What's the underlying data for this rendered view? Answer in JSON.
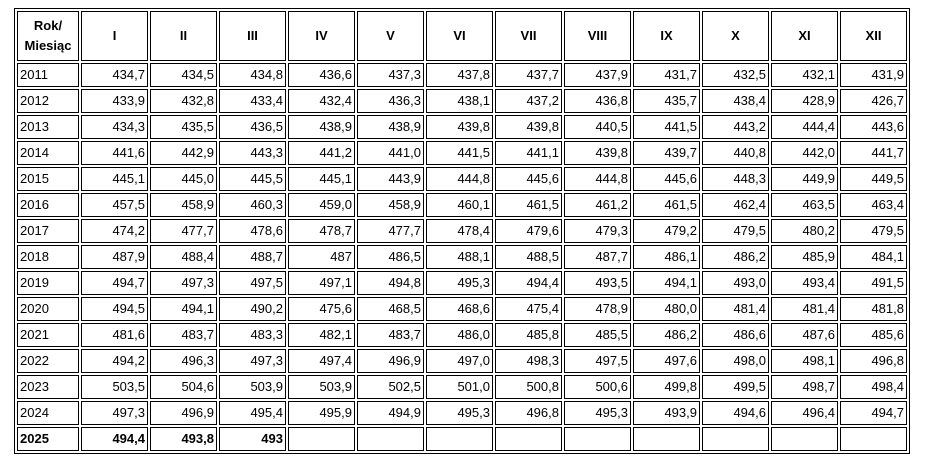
{
  "header": {
    "corner_line1": "Rok/",
    "corner_line2": "Miesiąc",
    "months": [
      "I",
      "II",
      "III",
      "IV",
      "V",
      "VI",
      "VII",
      "VIII",
      "IX",
      "X",
      "XI",
      "XII"
    ]
  },
  "rows": [
    {
      "year": "2011",
      "values": [
        "434,7",
        "434,5",
        "434,8",
        "436,6",
        "437,3",
        "437,8",
        "437,7",
        "437,9",
        "431,7",
        "432,5",
        "432,1",
        "431,9"
      ]
    },
    {
      "year": "2012",
      "values": [
        "433,9",
        "432,8",
        "433,4",
        "432,4",
        "436,3",
        "438,1",
        "437,2",
        "436,8",
        "435,7",
        "438,4",
        "428,9",
        "426,7"
      ]
    },
    {
      "year": "2013",
      "values": [
        "434,3",
        "435,5",
        "436,5",
        "438,9",
        "438,9",
        "439,8",
        "439,8",
        "440,5",
        "441,5",
        "443,2",
        "444,4",
        "443,6"
      ]
    },
    {
      "year": "2014",
      "values": [
        "441,6",
        "442,9",
        "443,3",
        "441,2",
        "441,0",
        "441,5",
        "441,1",
        "439,8",
        "439,7",
        "440,8",
        "442,0",
        "441,7"
      ]
    },
    {
      "year": "2015",
      "values": [
        "445,1",
        "445,0",
        "445,5",
        "445,1",
        "443,9",
        "444,8",
        "445,6",
        "444,8",
        "445,6",
        "448,3",
        "449,9",
        "449,5"
      ]
    },
    {
      "year": "2016",
      "values": [
        "457,5",
        "458,9",
        "460,3",
        "459,0",
        "458,9",
        "460,1",
        "461,5",
        "461,2",
        "461,5",
        "462,4",
        "463,5",
        "463,4"
      ]
    },
    {
      "year": "2017",
      "values": [
        "474,2",
        "477,7",
        "478,6",
        "478,7",
        "477,7",
        "478,4",
        "479,6",
        "479,3",
        "479,2",
        "479,5",
        "480,2",
        "479,5"
      ]
    },
    {
      "year": "2018",
      "values": [
        "487,9",
        "488,4",
        "488,7",
        "487",
        "486,5",
        "488,1",
        "488,5",
        "487,7",
        "486,1",
        "486,2",
        "485,9",
        "484,1"
      ]
    },
    {
      "year": "2019",
      "values": [
        "494,7",
        "497,3",
        "497,5",
        "497,1",
        "494,8",
        "495,3",
        "494,4",
        "493,5",
        "494,1",
        "493,0",
        "493,4",
        "491,5"
      ]
    },
    {
      "year": "2020",
      "values": [
        "494,5",
        "494,1",
        "490,2",
        "475,6",
        "468,5",
        "468,6",
        "475,4",
        "478,9",
        "480,0",
        "481,4",
        "481,4",
        "481,8"
      ]
    },
    {
      "year": "2021",
      "values": [
        "481,6",
        "483,7",
        "483,3",
        "482,1",
        "483,7",
        "486,0",
        "485,8",
        "485,5",
        "486,2",
        "486,6",
        "487,6",
        "485,6"
      ]
    },
    {
      "year": "2022",
      "values": [
        "494,2",
        "496,3",
        "497,3",
        "497,4",
        "496,9",
        "497,0",
        "498,3",
        "497,5",
        "497,6",
        "498,0",
        "498,1",
        "496,8"
      ]
    },
    {
      "year": "2023",
      "values": [
        "503,5",
        "504,6",
        "503,9",
        "503,9",
        "502,5",
        "501,0",
        "500,8",
        "500,6",
        "499,8",
        "499,5",
        "498,7",
        "498,4"
      ]
    },
    {
      "year": "2024",
      "values": [
        "497,3",
        "496,9",
        "495,4",
        "495,9",
        "494,9",
        "495,3",
        "496,8",
        "495,3",
        "493,9",
        "494,6",
        "496,4",
        "494,7"
      ]
    },
    {
      "year": "2025",
      "values": [
        "494,4",
        "493,8",
        "493",
        "",
        "",
        "",
        "",
        "",
        "",
        "",
        "",
        ""
      ],
      "bold": true
    }
  ]
}
